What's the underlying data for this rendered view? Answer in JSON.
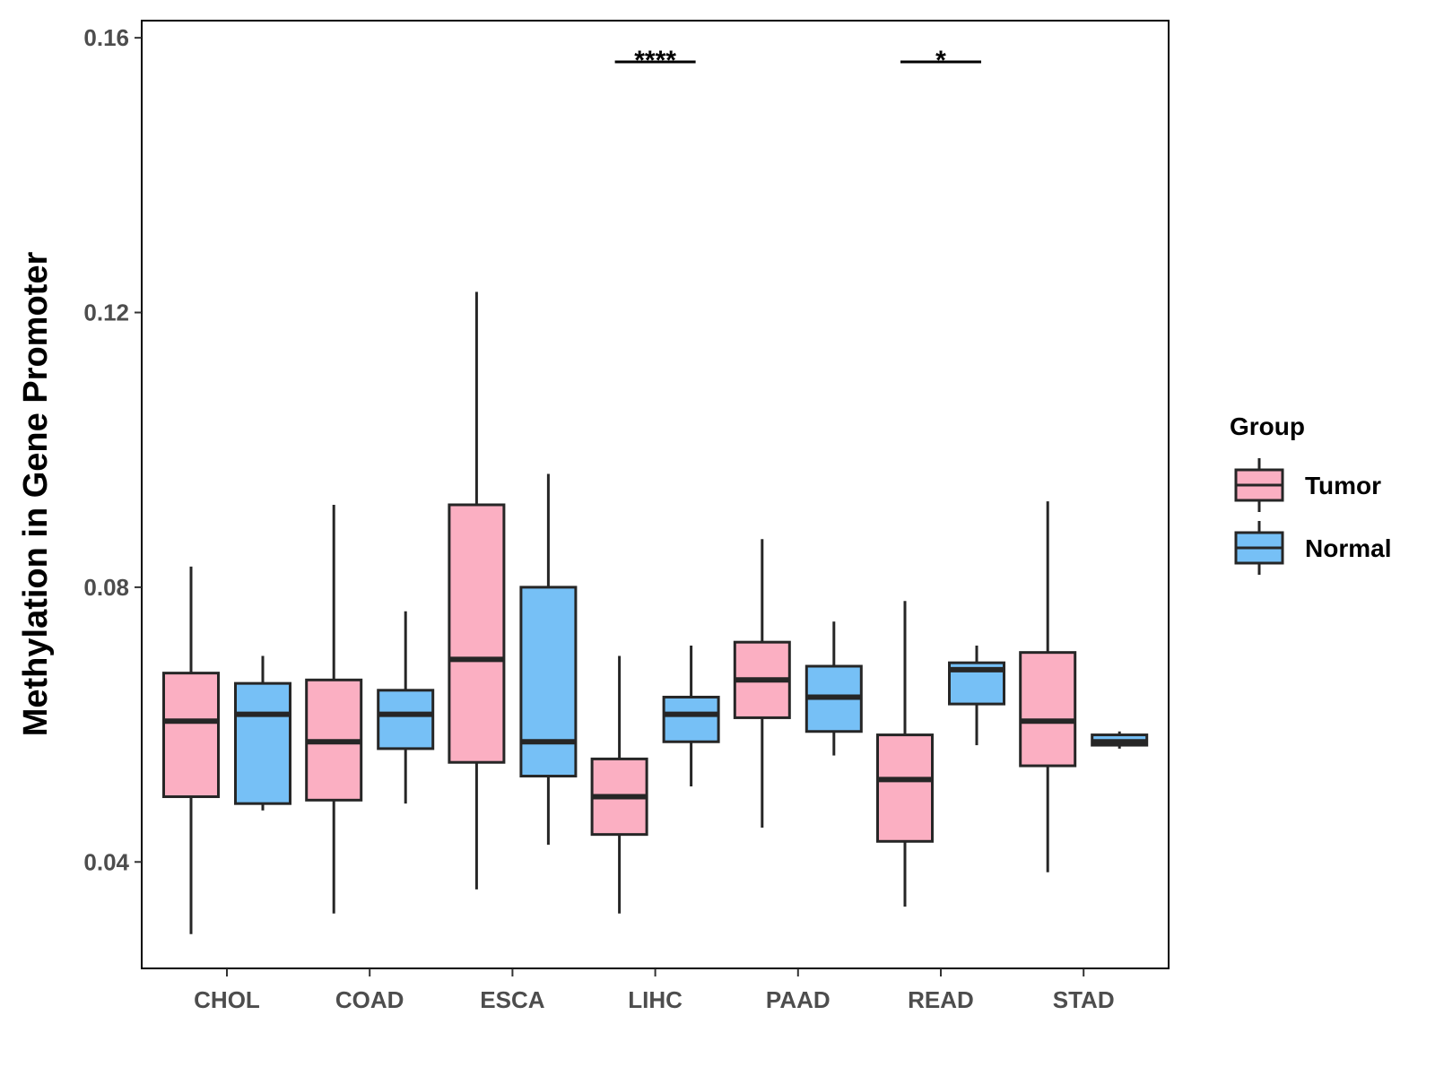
{
  "chart_data": {
    "type": "boxplot",
    "ylabel": "Methylation in Gene Promoter",
    "xlabel": "",
    "ylim": [
      0.0245,
      0.1625
    ],
    "yticks": [
      0.04,
      0.08,
      0.12,
      0.16
    ],
    "ytick_labels": [
      "0.04",
      "0.08",
      "0.12",
      "0.16"
    ],
    "categories": [
      "CHOL",
      "COAD",
      "ESCA",
      "LIHC",
      "PAAD",
      "READ",
      "STAD"
    ],
    "legend": {
      "title": "Group",
      "position": "right",
      "entries": [
        {
          "key": "Tumor",
          "label": "Tumor",
          "color": "#FBAFC2"
        },
        {
          "key": "Normal",
          "label": "Normal",
          "color": "#76C0F6"
        }
      ]
    },
    "series": [
      {
        "name": "Tumor",
        "color": "#FBAFC2",
        "boxes": [
          {
            "category": "CHOL",
            "min": 0.0295,
            "q1": 0.0495,
            "median": 0.0605,
            "q3": 0.0675,
            "max": 0.083
          },
          {
            "category": "COAD",
            "min": 0.0325,
            "q1": 0.049,
            "median": 0.0575,
            "q3": 0.0665,
            "max": 0.092
          },
          {
            "category": "ESCA",
            "min": 0.036,
            "q1": 0.0545,
            "median": 0.0695,
            "q3": 0.092,
            "max": 0.123
          },
          {
            "category": "LIHC",
            "min": 0.0325,
            "q1": 0.044,
            "median": 0.0495,
            "q3": 0.055,
            "max": 0.07
          },
          {
            "category": "PAAD",
            "min": 0.045,
            "q1": 0.061,
            "median": 0.0665,
            "q3": 0.072,
            "max": 0.087
          },
          {
            "category": "READ",
            "min": 0.0335,
            "q1": 0.043,
            "median": 0.052,
            "q3": 0.0585,
            "max": 0.078
          },
          {
            "category": "STAD",
            "min": 0.0385,
            "q1": 0.054,
            "median": 0.0605,
            "q3": 0.0705,
            "max": 0.0925
          }
        ]
      },
      {
        "name": "Normal",
        "color": "#76C0F6",
        "boxes": [
          {
            "category": "CHOL",
            "min": 0.0475,
            "q1": 0.0485,
            "median": 0.0615,
            "q3": 0.066,
            "max": 0.07
          },
          {
            "category": "COAD",
            "min": 0.0485,
            "q1": 0.0565,
            "median": 0.0615,
            "q3": 0.065,
            "max": 0.0765
          },
          {
            "category": "ESCA",
            "min": 0.0425,
            "q1": 0.0525,
            "median": 0.0575,
            "q3": 0.08,
            "max": 0.0965
          },
          {
            "category": "LIHC",
            "min": 0.051,
            "q1": 0.0575,
            "median": 0.0615,
            "q3": 0.064,
            "max": 0.0715
          },
          {
            "category": "PAAD",
            "min": 0.0555,
            "q1": 0.059,
            "median": 0.064,
            "q3": 0.0685,
            "max": 0.075
          },
          {
            "category": "READ",
            "min": 0.057,
            "q1": 0.063,
            "median": 0.068,
            "q3": 0.069,
            "max": 0.0715
          },
          {
            "category": "STAD",
            "min": 0.0565,
            "q1": 0.057,
            "median": 0.0575,
            "q3": 0.0585,
            "max": 0.059
          }
        ]
      }
    ],
    "annotations": [
      {
        "category": "LIHC",
        "label": "****",
        "y": 0.1565
      },
      {
        "category": "READ",
        "label": "*",
        "y": 0.1565
      }
    ]
  }
}
